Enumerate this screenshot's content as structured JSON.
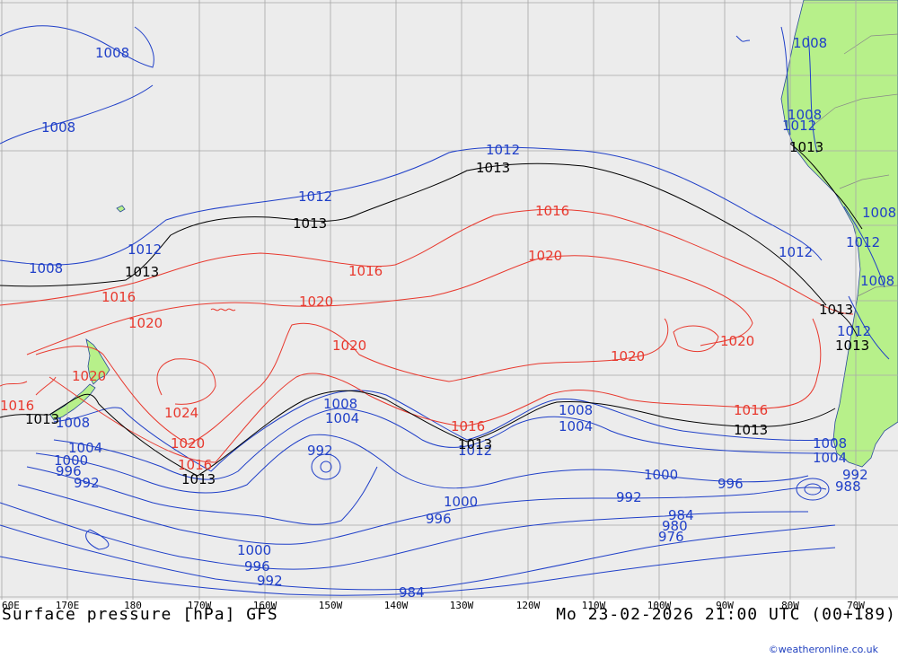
{
  "colors": {
    "ocean": "#ececec",
    "land": "#b7f08a",
    "grid": "#a8a8a8",
    "isobar_low": "#1f3fc8",
    "isobar_high": "#e8392e",
    "isobar_ref": "#000000"
  },
  "title": {
    "left": "Surface pressure [hPa] GFS",
    "right": "Mo 23-02-2026 21:00 UTC (00+189)"
  },
  "credit": "©weatheronline.co.uk",
  "lon_labels": [
    "60E",
    "170E",
    "180",
    "170W",
    "160W",
    "150W",
    "140W",
    "130W",
    "120W",
    "110W",
    "100W",
    "90W",
    "80W",
    "70W"
  ],
  "isobar_labels": {
    "l1008a": "1008",
    "l1008b": "1008",
    "l1008c": "1008",
    "l1008d": "1008",
    "l1008e": "1008",
    "l1008f": "1008",
    "l1008g": "1008",
    "l1008h": "1008",
    "l1008i": "1008",
    "l1008j": "1008",
    "l1008k": "1008",
    "l1012a": "1012",
    "l1012b": "1012",
    "l1012c": "1012",
    "l1012d": "1012",
    "l1012e": "1012",
    "l1012f": "1012",
    "l1012g": "1012",
    "l1012h": "1012",
    "l1013a": "1013",
    "l1013b": "1013",
    "l1013c": "1013",
    "l1013d": "1013",
    "l1013e": "1013",
    "l1013f": "1013",
    "l1013g": "1013",
    "l1013h": "1013",
    "l1013i": "1013",
    "l1013j": "1013",
    "l1016a": "1016",
    "l1016b": "1016",
    "l1016c": "1016",
    "l1016d": "1016",
    "l1016e": "1016",
    "l1016f": "1016",
    "l1016g": "1016",
    "l1020a": "1020",
    "l1020b": "1020",
    "l1020c": "1020",
    "l1020d": "1020",
    "l1020e": "1020",
    "l1020f": "1020",
    "l1020g": "1020",
    "l1020h": "1020",
    "l1024": "1024",
    "l1004a": "1004",
    "l1004b": "1004",
    "l1004c": "1004",
    "l1004d": "1004",
    "l1000a": "1000",
    "l1000b": "1000",
    "l1000c": "1000",
    "l1000d": "1000",
    "l996a": "996",
    "l996b": "996",
    "l996c": "996",
    "l996d": "996",
    "l992a": "992",
    "l992b": "992",
    "l992c": "992",
    "l992d": "992",
    "l992e": "992",
    "l988": "988",
    "l984a": "984",
    "l984b": "984",
    "l980": "980",
    "l976": "976"
  }
}
